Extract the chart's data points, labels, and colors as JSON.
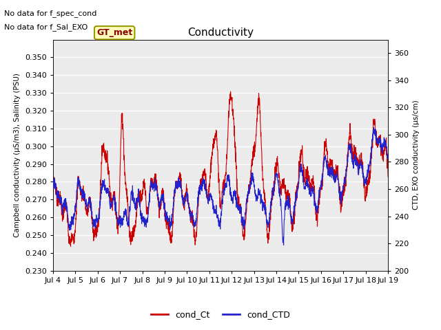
{
  "title": "Conductivity",
  "ylabel_left": "Campbell conductivity (µS/m3), Salinity (PSU)",
  "ylabel_right": "CTD, EXO conductivity (µs/cm)",
  "ylim_left": [
    0.23,
    0.36
  ],
  "ylim_right": [
    200,
    370
  ],
  "yticks_left": [
    0.23,
    0.24,
    0.25,
    0.26,
    0.27,
    0.28,
    0.29,
    0.3,
    0.31,
    0.32,
    0.33,
    0.34,
    0.35
  ],
  "yticks_right": [
    200,
    220,
    240,
    260,
    280,
    300,
    320,
    340,
    360
  ],
  "xtick_labels": [
    "Jul 4",
    "Jul 5",
    "Jul 6",
    "Jul 7",
    "Jul 8",
    "Jul 9",
    "Jul 10",
    "Jul 11",
    "Jul 12",
    "Jul 13",
    "Jul 14",
    "Jul 15",
    "Jul 16",
    "Jul 17",
    "Jul 18",
    "Jul 19"
  ],
  "annotation1": "No data for f_spec_cond",
  "annotation2": "No data for f_Sal_EXO",
  "box_label": "GT_met",
  "legend_labels": [
    "cond_Ct",
    "cond_CTD"
  ],
  "line_color_red": "#cc0000",
  "line_color_blue": "#2222cc",
  "bg_color": "#ebebeb",
  "grid_color": "#ffffff",
  "box_face": "#ffffbb",
  "box_edge": "#999900"
}
